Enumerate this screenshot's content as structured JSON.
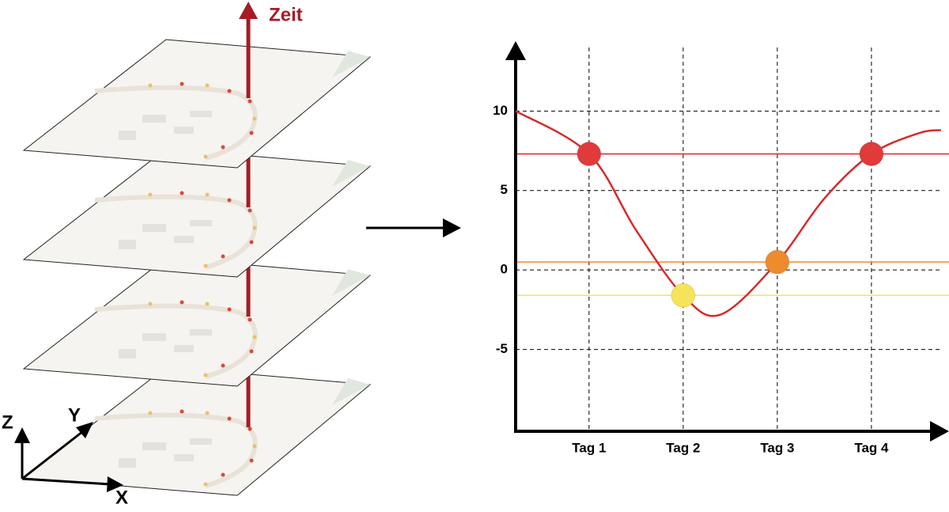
{
  "diagram": {
    "time_label": "Zeit",
    "axis_z": "Z",
    "axis_y": "Y",
    "axis_x": "X"
  },
  "chart_data": {
    "type": "line",
    "xlim": [
      0.22,
      4.74
    ],
    "ylim": [
      -10,
      14
    ],
    "xticks": [
      {
        "value": 1,
        "label": "Tag 1"
      },
      {
        "value": 2,
        "label": "Tag 2"
      },
      {
        "value": 3,
        "label": "Tag 3"
      },
      {
        "value": 4,
        "label": "Tag 4"
      }
    ],
    "yticks": [
      10,
      5,
      0,
      -5
    ],
    "grid": true,
    "curve": {
      "color": "#d62b2b",
      "x": [
        0.22,
        1,
        1.5,
        2,
        2.4,
        3,
        3.5,
        4,
        4.5,
        4.74
      ],
      "values": [
        10,
        7.3,
        2.5,
        -1.6,
        -2.8,
        0.5,
        4.5,
        7.3,
        8.6,
        8.8
      ]
    },
    "points": {
      "x": [
        1,
        2,
        3,
        4
      ],
      "values": [
        7.3,
        -1.6,
        0.5,
        7.3
      ],
      "colors": [
        "#e03a3a",
        "#f5e35a",
        "#ef8a2d",
        "#e03a3a"
      ]
    }
  }
}
